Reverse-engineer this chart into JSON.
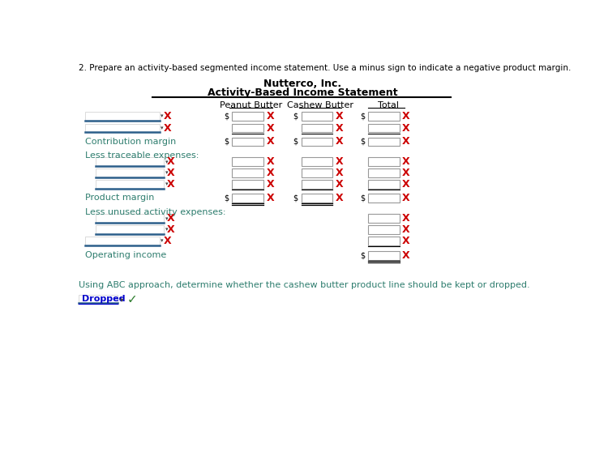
{
  "title1": "Nutterco, Inc.",
  "title2": "Activity-Based Income Statement",
  "instruction": "2. Prepare an activity-based segmented income statement. Use a minus sign to indicate a negative product margin.",
  "col_headers": [
    "Peanut Butter",
    "Cashew Butter",
    "Total"
  ],
  "labels": {
    "contribution_margin": "Contribution margin",
    "less_traceable": "Less traceable expenses:",
    "product_margin": "Product margin",
    "less_unused": "Less unused activity expenses:",
    "operating_income": "Operating income"
  },
  "bottom_text": "Using ABC approach, determine whether the cashew butter product line should be kept or dropped.",
  "dropped_label": "Dropped",
  "bg_color": "#ffffff",
  "text_color_teal": "#2e7d6e",
  "text_color_black": "#000000",
  "text_color_red": "#cc0000",
  "dropdown_line_color": "#2c5f8a",
  "check_color": "#2e7d2e",
  "dropped_text_color": "#0000cc",
  "header_color": "#000000"
}
